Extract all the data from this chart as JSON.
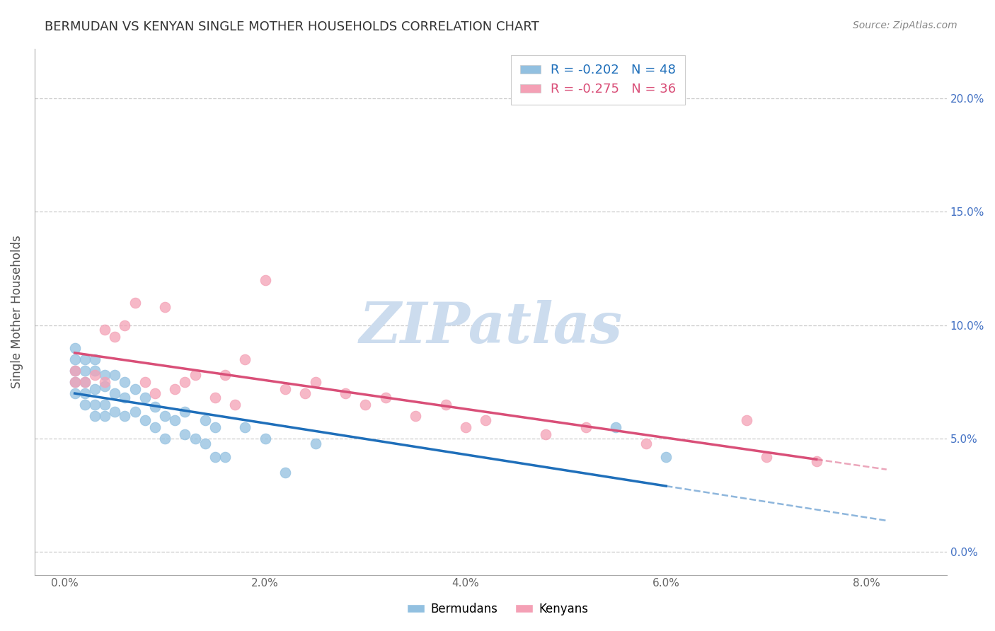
{
  "title": "BERMUDAN VS KENYAN SINGLE MOTHER HOUSEHOLDS CORRELATION CHART",
  "source": "Source: ZipAtlas.com",
  "ylabel": "Single Mother Households",
  "xlabel_ticks": [
    "0.0%",
    "2.0%",
    "4.0%",
    "6.0%",
    "8.0%"
  ],
  "xlabel_vals": [
    0.0,
    0.02,
    0.04,
    0.06,
    0.08
  ],
  "ylabel_ticks": [
    "0.0%",
    "5.0%",
    "10.0%",
    "15.0%",
    "20.0%"
  ],
  "ylabel_vals": [
    0.0,
    0.05,
    0.1,
    0.15,
    0.2
  ],
  "xlim": [
    -0.003,
    0.088
  ],
  "ylim": [
    -0.01,
    0.222
  ],
  "bermuda_R": "-0.202",
  "bermuda_N": "48",
  "kenya_R": "-0.275",
  "kenya_N": "36",
  "bermuda_color": "#92c0e0",
  "kenya_color": "#f4a0b5",
  "bermuda_line_color": "#1f6fba",
  "kenya_line_color": "#d94f78",
  "watermark_color": "#ccdcee",
  "watermark_text": "ZIPatlas",
  "bermuda_x": [
    0.001,
    0.001,
    0.001,
    0.001,
    0.001,
    0.002,
    0.002,
    0.002,
    0.002,
    0.002,
    0.003,
    0.003,
    0.003,
    0.003,
    0.003,
    0.004,
    0.004,
    0.004,
    0.004,
    0.005,
    0.005,
    0.005,
    0.006,
    0.006,
    0.006,
    0.007,
    0.007,
    0.008,
    0.008,
    0.009,
    0.009,
    0.01,
    0.01,
    0.011,
    0.012,
    0.012,
    0.013,
    0.014,
    0.014,
    0.015,
    0.015,
    0.016,
    0.018,
    0.02,
    0.022,
    0.025,
    0.055,
    0.06
  ],
  "bermuda_y": [
    0.09,
    0.085,
    0.08,
    0.075,
    0.07,
    0.085,
    0.08,
    0.075,
    0.07,
    0.065,
    0.085,
    0.08,
    0.072,
    0.065,
    0.06,
    0.078,
    0.073,
    0.065,
    0.06,
    0.078,
    0.07,
    0.062,
    0.075,
    0.068,
    0.06,
    0.072,
    0.062,
    0.068,
    0.058,
    0.064,
    0.055,
    0.06,
    0.05,
    0.058,
    0.062,
    0.052,
    0.05,
    0.058,
    0.048,
    0.055,
    0.042,
    0.042,
    0.055,
    0.05,
    0.035,
    0.048,
    0.055,
    0.042
  ],
  "kenya_x": [
    0.001,
    0.001,
    0.002,
    0.003,
    0.004,
    0.004,
    0.005,
    0.006,
    0.007,
    0.008,
    0.009,
    0.01,
    0.011,
    0.012,
    0.013,
    0.015,
    0.016,
    0.017,
    0.018,
    0.02,
    0.022,
    0.024,
    0.025,
    0.028,
    0.03,
    0.032,
    0.035,
    0.038,
    0.04,
    0.042,
    0.048,
    0.052,
    0.058,
    0.068,
    0.07,
    0.075
  ],
  "kenya_y": [
    0.08,
    0.075,
    0.075,
    0.078,
    0.098,
    0.075,
    0.095,
    0.1,
    0.11,
    0.075,
    0.07,
    0.108,
    0.072,
    0.075,
    0.078,
    0.068,
    0.078,
    0.065,
    0.085,
    0.12,
    0.072,
    0.07,
    0.075,
    0.07,
    0.065,
    0.068,
    0.06,
    0.065,
    0.055,
    0.058,
    0.052,
    0.055,
    0.048,
    0.058,
    0.042,
    0.04
  ]
}
